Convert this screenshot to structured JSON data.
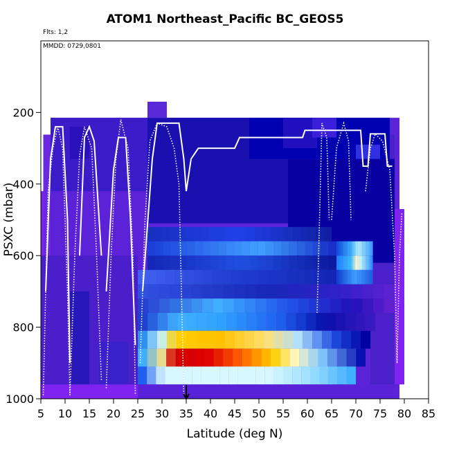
{
  "chart_data": {
    "type": "heatmap",
    "title": "ATOM1 Northeast_Pacific BC_GEOS5",
    "annotations": {
      "flights": "Flts: 1,2",
      "dates": "MMDD: 0729,0801"
    },
    "xlabel": "Latitude (deg N)",
    "ylabel": "PSXC (mbar)",
    "xlim": [
      5,
      85
    ],
    "ylim": [
      1000,
      0
    ],
    "x_ticks": [
      "5",
      "10",
      "15",
      "20",
      "25",
      "30",
      "35",
      "40",
      "45",
      "50",
      "55",
      "60",
      "65",
      "70",
      "75",
      "80",
      "85"
    ],
    "y_ticks": [
      "200",
      "400",
      "600",
      "800",
      "1000"
    ],
    "y_tick_values": [
      200,
      400,
      600,
      800,
      1000
    ],
    "marker": {
      "x": 35,
      "y": 1000,
      "symbol": "arrow"
    },
    "colors": {
      "background_violet": "#7f24f0",
      "deep_blue": "#0000b0",
      "mid_blue": "#2050f0",
      "light_blue": "#40b0ff",
      "pale_cyan": "#d8f8ff",
      "yellow": "#ffd000",
      "orange": "#ff8000",
      "red": "#d00000",
      "flight_track": "#ffffff"
    },
    "grid": false,
    "legend": "none"
  }
}
